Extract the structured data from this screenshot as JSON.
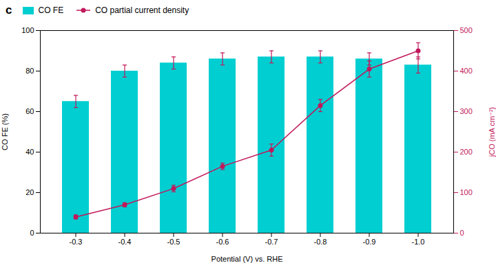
{
  "chart_data": {
    "type": "bar",
    "annotations": [
      "c"
    ],
    "xlabel": "Potential (V) vs. RHE",
    "ylabel": "CO FE (%)",
    "y2label": "jCO (mA cm⁻²)",
    "categories": [
      "-0.3",
      "-0.4",
      "-0.5",
      "-0.6",
      "-0.7",
      "-0.8",
      "-0.9",
      "-1.0"
    ],
    "series": [
      {
        "name": "CO FE",
        "type": "bar",
        "color": "#00CED1",
        "values": [
          65,
          80,
          84,
          86,
          87,
          87,
          86,
          83
        ],
        "errors": [
          3,
          3,
          3,
          3,
          3,
          3,
          3,
          4
        ]
      },
      {
        "name": "CO partial current density",
        "type": "line",
        "color": "#C2185B",
        "marker": "circle",
        "axis": "y2",
        "values": [
          40,
          70,
          110,
          165,
          205,
          315,
          405,
          450
        ],
        "errors": [
          5,
          5,
          8,
          8,
          15,
          15,
          20,
          20
        ]
      }
    ],
    "ylim": [
      0,
      100
    ],
    "yticks": [
      0,
      20,
      40,
      60,
      80,
      100
    ],
    "y2lim": [
      0,
      500
    ],
    "y2ticks": [
      0,
      100,
      200,
      300,
      400,
      500
    ],
    "legend": "upper left"
  }
}
